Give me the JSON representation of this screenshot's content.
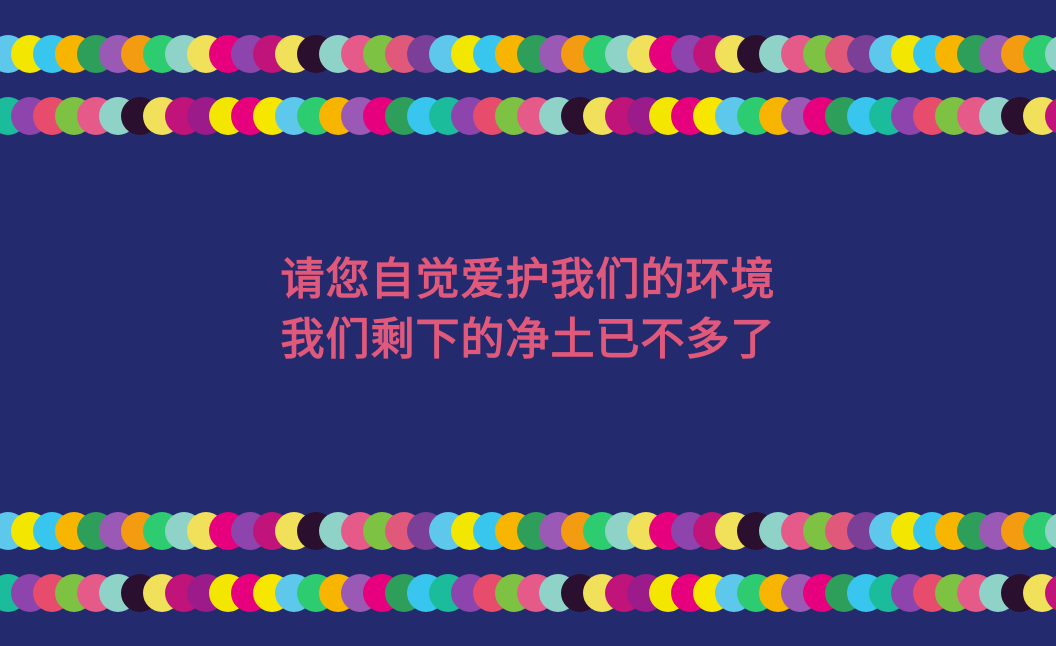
{
  "message": {
    "line1": "请您自觉爱护我们的环境",
    "line2": "我们剩下的净土已不多了"
  },
  "colors": {
    "background": "#242a6e",
    "text": "#e0587a",
    "dots_pattern_a": [
      "#5ec8ec",
      "#f3e600",
      "#39c6ee",
      "#f7b500",
      "#2e9e5b",
      "#9b59b6",
      "#f39c12",
      "#2ecc71",
      "#8fd3c8",
      "#f1e05a",
      "#e6007e",
      "#8e44ad",
      "#c0147a",
      "#f0e05a",
      "#2b0f2e",
      "#8fd3c8",
      "#e65a8a",
      "#7dc242",
      "#e0587a",
      "#7b3f98"
    ],
    "dots_pattern_b": [
      "#1abc9c",
      "#8e44ad",
      "#e74c6c",
      "#7dc242",
      "#e65a8a",
      "#8fd3c8",
      "#2b0f2e",
      "#f1e05a",
      "#c0147a",
      "#9b1b8a",
      "#f3e600",
      "#e6007e",
      "#f7e600",
      "#5ec8ec",
      "#2ecc71",
      "#f7b500",
      "#9b59b6",
      "#e6007e",
      "#2e9e5b",
      "#39c6ee"
    ]
  }
}
